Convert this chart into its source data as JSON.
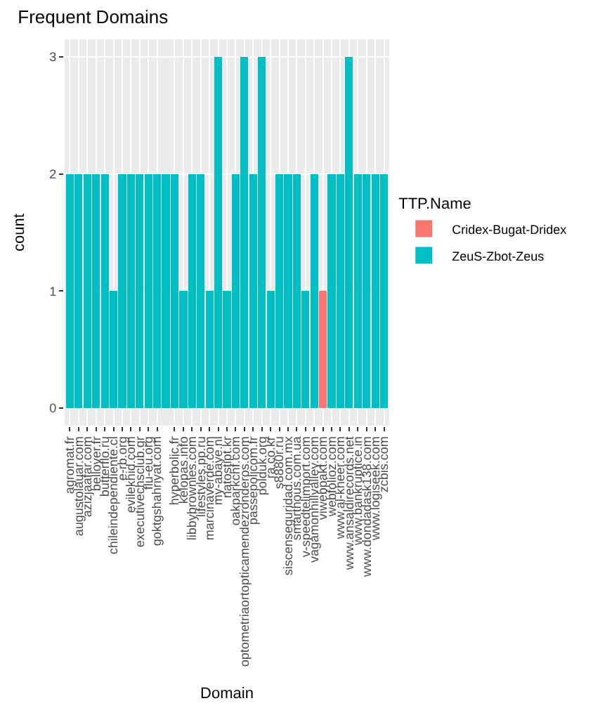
{
  "chart_data": {
    "type": "bar",
    "title": "Frequent Domains",
    "xlabel": "Domain",
    "ylabel": "count",
    "legend_title": "TTP.Name",
    "categories": [
      "agromat.fr",
      "augustolauar.com",
      "azizjaafar.com",
      "bellover.fr",
      "butterflo.ru",
      "chileindependiente.cl",
      "e-rb.org",
      "evilekhid.com",
      "executivechsclub.gr",
      "flu-eu.org",
      "goktgshahriyat.com",
      null,
      "hyperbolic.fr",
      "kelopas.info",
      "libbybrownies.com",
      "lifestyles.pp.ru",
      "marcinaverde.com",
      "my-abaye.nl",
      "natostipt.kr",
      "oakparkchf.com",
      "optometriaortopticamendezronderos.com",
      "passepolicom.fr",
      "polduk.org",
      "ra.co.kr",
      "s8880r.ru",
      "siscenseguridad.com.mx",
      "smarthous.com.ua",
      "v-speedtelimport.com",
      "vagamonhillvalley.com",
      "viwebpakt.com",
      "webfolioz.com",
      "www.al-kheer.com",
      "www.ansaldirecords.net",
      "www.bankruptice.in",
      "www.dondadask138.com",
      "www.logiseek.com",
      "zcbis.com"
    ],
    "stacked": true,
    "series": [
      {
        "name": "Cridex-Bugat-Dridex",
        "color": "#f8766d",
        "values": [
          null,
          null,
          null,
          null,
          null,
          null,
          null,
          null,
          null,
          null,
          null,
          null,
          null,
          null,
          null,
          null,
          null,
          null,
          null,
          null,
          null,
          null,
          null,
          null,
          null,
          null,
          null,
          null,
          null,
          1,
          null,
          null,
          null,
          null,
          null,
          null,
          null
        ]
      },
      {
        "name": "ZeuS-Zbot-Zeus",
        "color": "#00bfc4",
        "values": [
          2,
          2,
          2,
          2,
          2,
          1,
          2,
          2,
          2,
          2,
          2,
          2,
          2,
          1,
          2,
          2,
          1,
          3,
          1,
          2,
          3,
          2,
          3,
          1,
          2,
          2,
          2,
          1,
          2,
          null,
          2,
          2,
          3,
          2,
          2,
          2,
          2
        ]
      }
    ],
    "ylim": [
      -0.15,
      3.15
    ],
    "yticks": [
      0,
      1,
      2,
      3
    ],
    "grid": true,
    "legend": "right"
  }
}
